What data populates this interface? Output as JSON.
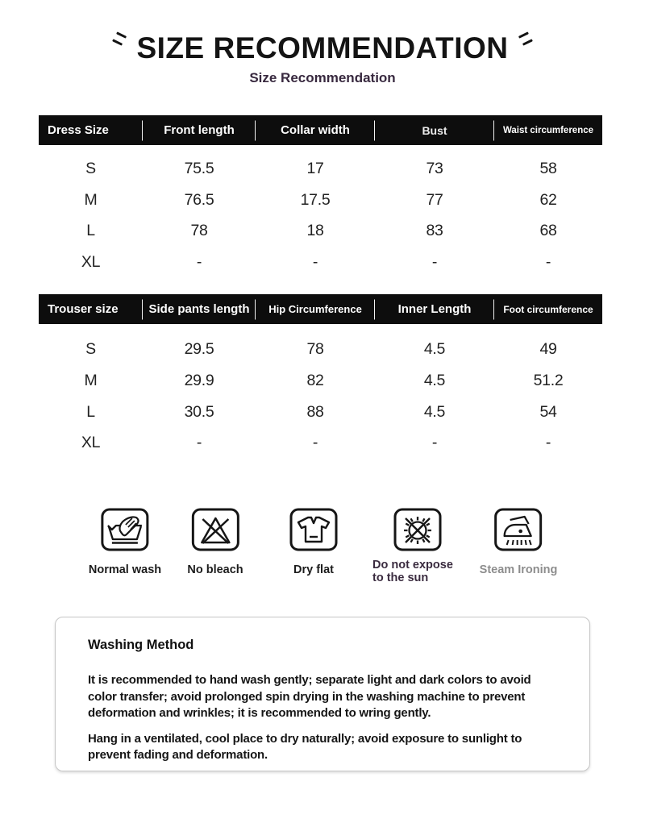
{
  "page": {
    "title": "SIZE RECOMMENDATION",
    "subtitle": "Size Recommendation"
  },
  "tables": [
    {
      "name": "dress-size-table",
      "headers": [
        "Dress Size",
        "Front length",
        "Collar width",
        "Bust",
        "Waist circumference"
      ],
      "rows": [
        [
          "S",
          "75.5",
          "17",
          "73",
          "58"
        ],
        [
          "M",
          "76.5",
          "17.5",
          "77",
          "62"
        ],
        [
          "L",
          "78",
          "18",
          "83",
          "68"
        ],
        [
          "XL",
          "-",
          "-",
          "-",
          "-"
        ]
      ]
    },
    {
      "name": "trouser-size-table",
      "headers": [
        "Trouser size",
        "Side pants length",
        "Hip Circumference",
        "Inner Length",
        "Foot circumference"
      ],
      "rows": [
        [
          "S",
          "29.5",
          "78",
          "4.5",
          "49"
        ],
        [
          "M",
          "29.9",
          "82",
          "4.5",
          "51.2"
        ],
        [
          "L",
          "30.5",
          "88",
          "4.5",
          "54"
        ],
        [
          "XL",
          "-",
          "-",
          "-",
          "-"
        ]
      ]
    }
  ],
  "care": [
    {
      "icon": "hand-wash-icon",
      "label": "Normal wash"
    },
    {
      "icon": "no-bleach-icon",
      "label": "No bleach"
    },
    {
      "icon": "dry-flat-icon",
      "label": "Dry flat"
    },
    {
      "icon": "do-not-expose-sun-icon",
      "label": "Do not expose to the sun"
    },
    {
      "icon": "steam-iron-icon",
      "label": "Steam Ironing"
    }
  ],
  "washing": {
    "heading": "Washing Method",
    "paragraphs": [
      "It is recommended to hand wash gently; separate light and dark colors to avoid color transfer; avoid prolonged spin drying in the washing machine to prevent deformation and wrinkles; it is recommended to wring gently.",
      "Hang in a ventilated, cool place to dry naturally; avoid exposure to sunlight to prevent fading and deformation."
    ]
  },
  "colors": {
    "header_bar": "#0d0d0d",
    "subtitle_text": "#38293f",
    "muted_label": "#8d8d8d",
    "box_border": "#c6c6c6"
  }
}
